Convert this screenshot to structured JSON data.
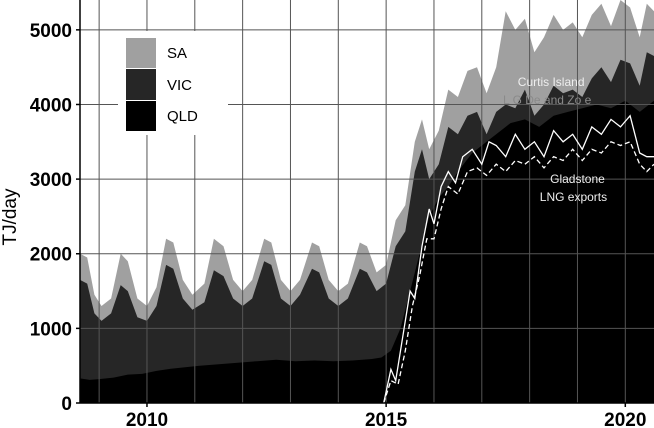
{
  "chart_data": {
    "type": "area",
    "stacked": true,
    "ylabel": "TJ/day",
    "xlim": [
      2008.6,
      2020.6
    ],
    "ylim": [
      0,
      5400
    ],
    "x_ticks": [
      2010,
      2015,
      2020
    ],
    "y_ticks": [
      0,
      1000,
      2000,
      3000,
      4000,
      5000
    ],
    "grid": true,
    "legend_position": "top-left",
    "series": [
      {
        "name": "QLD",
        "color": "#000000",
        "points": [
          [
            2008.6,
            330
          ],
          [
            2008.8,
            310
          ],
          [
            2009.0,
            320
          ],
          [
            2009.3,
            340
          ],
          [
            2009.6,
            380
          ],
          [
            2009.9,
            390
          ],
          [
            2010.2,
            430
          ],
          [
            2010.5,
            460
          ],
          [
            2010.8,
            480
          ],
          [
            2011.1,
            500
          ],
          [
            2011.5,
            520
          ],
          [
            2011.9,
            540
          ],
          [
            2012.3,
            560
          ],
          [
            2012.7,
            580
          ],
          [
            2013.1,
            560
          ],
          [
            2013.5,
            570
          ],
          [
            2013.9,
            560
          ],
          [
            2014.3,
            570
          ],
          [
            2014.7,
            590
          ],
          [
            2014.9,
            610
          ],
          [
            2015.1,
            700
          ],
          [
            2015.3,
            1000
          ],
          [
            2015.5,
            1500
          ],
          [
            2015.7,
            2000
          ],
          [
            2015.9,
            2500
          ],
          [
            2016.1,
            2750
          ],
          [
            2016.3,
            2900
          ],
          [
            2016.5,
            3100
          ],
          [
            2016.8,
            3350
          ],
          [
            2017.0,
            3450
          ],
          [
            2017.3,
            3600
          ],
          [
            2017.6,
            3750
          ],
          [
            2017.9,
            3800
          ],
          [
            2018.2,
            3700
          ],
          [
            2018.5,
            3850
          ],
          [
            2018.8,
            3900
          ],
          [
            2019.1,
            3950
          ],
          [
            2019.4,
            4000
          ],
          [
            2019.7,
            3950
          ],
          [
            2020.0,
            4050
          ],
          [
            2020.3,
            3900
          ],
          [
            2020.6,
            4050
          ]
        ]
      },
      {
        "name": "VIC",
        "color": "#262626",
        "points": [
          [
            2008.6,
            1650
          ],
          [
            2008.75,
            1600
          ],
          [
            2008.9,
            1200
          ],
          [
            2009.05,
            1100
          ],
          [
            2009.25,
            1200
          ],
          [
            2009.45,
            1580
          ],
          [
            2009.6,
            1500
          ],
          [
            2009.8,
            1150
          ],
          [
            2010.0,
            1100
          ],
          [
            2010.2,
            1300
          ],
          [
            2010.4,
            1850
          ],
          [
            2010.55,
            1800
          ],
          [
            2010.75,
            1400
          ],
          [
            2010.95,
            1250
          ],
          [
            2011.2,
            1350
          ],
          [
            2011.4,
            1780
          ],
          [
            2011.6,
            1700
          ],
          [
            2011.8,
            1400
          ],
          [
            2012.0,
            1300
          ],
          [
            2012.2,
            1400
          ],
          [
            2012.45,
            1900
          ],
          [
            2012.6,
            1850
          ],
          [
            2012.8,
            1400
          ],
          [
            2013.0,
            1300
          ],
          [
            2013.2,
            1450
          ],
          [
            2013.45,
            1800
          ],
          [
            2013.6,
            1750
          ],
          [
            2013.8,
            1400
          ],
          [
            2014.0,
            1300
          ],
          [
            2014.2,
            1400
          ],
          [
            2014.45,
            1800
          ],
          [
            2014.6,
            1750
          ],
          [
            2014.8,
            1500
          ],
          [
            2015.0,
            1600
          ],
          [
            2015.2,
            2100
          ],
          [
            2015.4,
            2300
          ],
          [
            2015.6,
            3100
          ],
          [
            2015.75,
            3400
          ],
          [
            2015.9,
            3000
          ],
          [
            2016.1,
            3200
          ],
          [
            2016.3,
            3700
          ],
          [
            2016.5,
            3600
          ],
          [
            2016.7,
            3850
          ],
          [
            2016.9,
            3900
          ],
          [
            2017.1,
            3600
          ],
          [
            2017.3,
            3900
          ],
          [
            2017.5,
            4000
          ],
          [
            2017.7,
            3950
          ],
          [
            2017.9,
            4200
          ],
          [
            2018.1,
            3850
          ],
          [
            2018.3,
            4000
          ],
          [
            2018.5,
            4250
          ],
          [
            2018.7,
            4150
          ],
          [
            2018.9,
            4200
          ],
          [
            2019.1,
            4100
          ],
          [
            2019.3,
            4350
          ],
          [
            2019.5,
            4500
          ],
          [
            2019.7,
            4300
          ],
          [
            2019.9,
            4600
          ],
          [
            2020.1,
            4550
          ],
          [
            2020.3,
            4250
          ],
          [
            2020.45,
            4700
          ],
          [
            2020.6,
            4650
          ]
        ]
      },
      {
        "name": "SA",
        "color": "#a0a0a0",
        "points": [
          [
            2008.6,
            2000
          ],
          [
            2008.75,
            1950
          ],
          [
            2008.9,
            1450
          ],
          [
            2009.05,
            1300
          ],
          [
            2009.25,
            1400
          ],
          [
            2009.45,
            2000
          ],
          [
            2009.6,
            1900
          ],
          [
            2009.8,
            1400
          ],
          [
            2010.0,
            1300
          ],
          [
            2010.2,
            1550
          ],
          [
            2010.4,
            2200
          ],
          [
            2010.55,
            2150
          ],
          [
            2010.75,
            1650
          ],
          [
            2010.95,
            1450
          ],
          [
            2011.2,
            1600
          ],
          [
            2011.4,
            2200
          ],
          [
            2011.6,
            2100
          ],
          [
            2011.8,
            1650
          ],
          [
            2012.0,
            1500
          ],
          [
            2012.2,
            1650
          ],
          [
            2012.45,
            2200
          ],
          [
            2012.6,
            2150
          ],
          [
            2012.8,
            1650
          ],
          [
            2013.0,
            1500
          ],
          [
            2013.2,
            1650
          ],
          [
            2013.45,
            2150
          ],
          [
            2013.6,
            2100
          ],
          [
            2013.8,
            1650
          ],
          [
            2014.0,
            1500
          ],
          [
            2014.2,
            1600
          ],
          [
            2014.45,
            2150
          ],
          [
            2014.6,
            2100
          ],
          [
            2014.8,
            1750
          ],
          [
            2015.0,
            1850
          ],
          [
            2015.2,
            2450
          ],
          [
            2015.4,
            2650
          ],
          [
            2015.6,
            3500
          ],
          [
            2015.75,
            3800
          ],
          [
            2015.9,
            3400
          ],
          [
            2016.1,
            3650
          ],
          [
            2016.3,
            4200
          ],
          [
            2016.5,
            4100
          ],
          [
            2016.7,
            4450
          ],
          [
            2016.9,
            4500
          ],
          [
            2017.1,
            4150
          ],
          [
            2017.3,
            4500
          ],
          [
            2017.5,
            5250
          ],
          [
            2017.7,
            5000
          ],
          [
            2017.9,
            5150
          ],
          [
            2018.1,
            4700
          ],
          [
            2018.3,
            4900
          ],
          [
            2018.5,
            5200
          ],
          [
            2018.7,
            5000
          ],
          [
            2018.9,
            5100
          ],
          [
            2019.1,
            4900
          ],
          [
            2019.3,
            5200
          ],
          [
            2019.5,
            5350
          ],
          [
            2019.7,
            5050
          ],
          [
            2019.9,
            5400
          ],
          [
            2020.1,
            5300
          ],
          [
            2020.3,
            4900
          ],
          [
            2020.45,
            5350
          ],
          [
            2020.6,
            5250
          ]
        ]
      }
    ],
    "overlay_lines": [
      {
        "name": "Curtis Island LNG Demand Zone",
        "style": "solid",
        "color": "#ffffff",
        "points": [
          [
            2014.95,
            0
          ],
          [
            2015.1,
            450
          ],
          [
            2015.2,
            300
          ],
          [
            2015.35,
            900
          ],
          [
            2015.5,
            1500
          ],
          [
            2015.6,
            1400
          ],
          [
            2015.75,
            2100
          ],
          [
            2015.9,
            2600
          ],
          [
            2016.0,
            2400
          ],
          [
            2016.15,
            2900
          ],
          [
            2016.3,
            3100
          ],
          [
            2016.45,
            2950
          ],
          [
            2016.6,
            3300
          ],
          [
            2016.8,
            3400
          ],
          [
            2017.0,
            3200
          ],
          [
            2017.15,
            3500
          ],
          [
            2017.3,
            3450
          ],
          [
            2017.5,
            3300
          ],
          [
            2017.7,
            3600
          ],
          [
            2017.9,
            3400
          ],
          [
            2018.1,
            3500
          ],
          [
            2018.3,
            3300
          ],
          [
            2018.5,
            3650
          ],
          [
            2018.7,
            3500
          ],
          [
            2018.9,
            3600
          ],
          [
            2019.1,
            3400
          ],
          [
            2019.3,
            3700
          ],
          [
            2019.5,
            3600
          ],
          [
            2019.7,
            3800
          ],
          [
            2019.9,
            3700
          ],
          [
            2020.1,
            3850
          ],
          [
            2020.3,
            3350
          ],
          [
            2020.45,
            3300
          ],
          [
            2020.6,
            3300
          ]
        ]
      },
      {
        "name": "Gladstone LNG exports",
        "style": "dashed",
        "color": "#ffffff",
        "points": [
          [
            2014.95,
            0
          ],
          [
            2015.1,
            300
          ],
          [
            2015.25,
            250
          ],
          [
            2015.4,
            700
          ],
          [
            2015.55,
            1300
          ],
          [
            2015.7,
            1700
          ],
          [
            2015.85,
            2200
          ],
          [
            2016.0,
            2200
          ],
          [
            2016.15,
            2600
          ],
          [
            2016.3,
            2900
          ],
          [
            2016.5,
            2800
          ],
          [
            2016.7,
            3100
          ],
          [
            2016.9,
            3150
          ],
          [
            2017.1,
            3050
          ],
          [
            2017.3,
            3200
          ],
          [
            2017.5,
            3100
          ],
          [
            2017.7,
            3250
          ],
          [
            2017.9,
            3200
          ],
          [
            2018.1,
            3300
          ],
          [
            2018.3,
            3150
          ],
          [
            2018.5,
            3300
          ],
          [
            2018.7,
            3250
          ],
          [
            2018.9,
            3400
          ],
          [
            2019.1,
            3250
          ],
          [
            2019.3,
            3400
          ],
          [
            2019.5,
            3350
          ],
          [
            2019.7,
            3500
          ],
          [
            2019.9,
            3450
          ],
          [
            2020.1,
            3500
          ],
          [
            2020.3,
            3200
          ],
          [
            2020.45,
            3100
          ],
          [
            2020.6,
            3200
          ]
        ]
      }
    ],
    "annotations": [
      {
        "text_line1": "Curtis Island",
        "text_line2": "L  G De   and Zo e",
        "x": 2018.45,
        "y": 4250
      },
      {
        "text_line1": "Gladstone",
        "text_line2": "LNG exports",
        "x": 2019.0,
        "y": 2950
      }
    ]
  }
}
